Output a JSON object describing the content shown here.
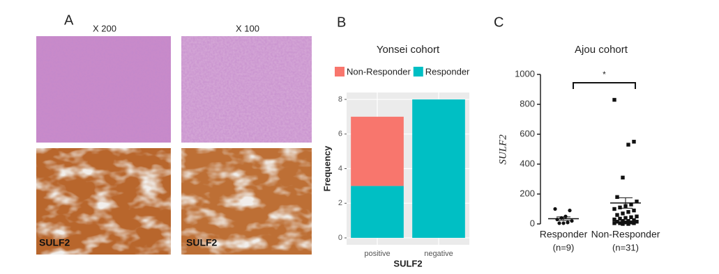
{
  "figure": {
    "panel_labels": [
      "A",
      "B",
      "C"
    ],
    "magnifications": [
      "X 200",
      "X 100"
    ],
    "stain_labels": [
      "SULF2",
      "SULF2"
    ]
  },
  "chart_data": [
    {
      "type": "bar",
      "stacked": true,
      "title": "Yonsei cohort",
      "x_label": "SULF2",
      "y_label": "Frequency",
      "categories": [
        "positive",
        "negative"
      ],
      "series": [
        {
          "name": "Non-Responder",
          "color": "#f8766d",
          "values": [
            4,
            0
          ]
        },
        {
          "name": "Responder",
          "color": "#00bfc4",
          "values": [
            3,
            8
          ]
        }
      ],
      "ylim": [
        -0.4,
        8.4
      ],
      "yticks": [
        0,
        2,
        4,
        6,
        8
      ],
      "grid": true,
      "legend": "top"
    },
    {
      "type": "scatter",
      "title": "Ajou cohort",
      "y_label": "SULF2",
      "categories": [
        "Responder",
        "Non-Responder"
      ],
      "category_counts": [
        "(n=9)",
        "(n=31)"
      ],
      "series": [
        {
          "name": "Responder",
          "color": "#111111",
          "values": [
            100,
            90,
            50,
            40,
            30,
            20,
            10,
            5,
            5
          ]
        },
        {
          "name": "Non-Responder",
          "color": "#111111",
          "values": [
            830,
            550,
            530,
            310,
            180,
            150,
            130,
            120,
            110,
            100,
            90,
            80,
            70,
            60,
            50,
            45,
            40,
            35,
            30,
            25,
            20,
            20,
            15,
            15,
            10,
            10,
            5,
            5,
            5,
            0,
            0
          ]
        }
      ],
      "means": [
        35,
        140
      ],
      "errors": [
        12,
        35
      ],
      "annotation": "*",
      "ylim": [
        0,
        1000
      ],
      "yticks": [
        0,
        200,
        400,
        600,
        800,
        1000
      ]
    }
  ]
}
